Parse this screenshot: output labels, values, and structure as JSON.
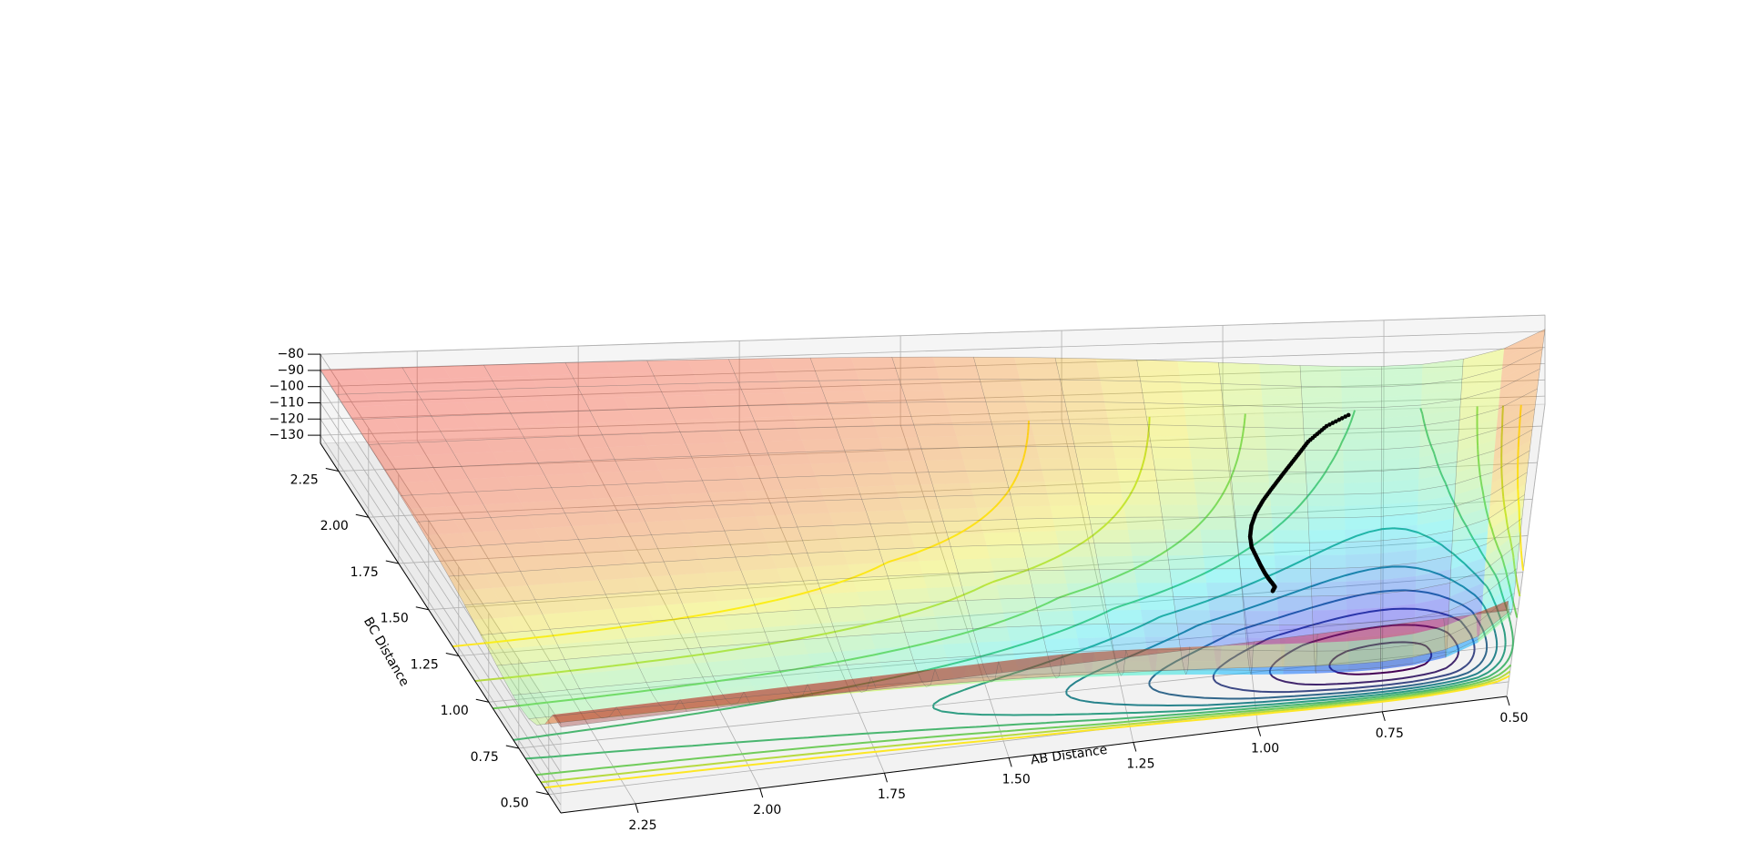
{
  "chart_data": {
    "type": "surface3d",
    "title": "",
    "zlim": [
      -135,
      -80
    ],
    "xlim": [
      0.5,
      2.4
    ],
    "ylim": [
      0.4,
      2.4
    ],
    "x_axis": {
      "label": "AB Distance",
      "ticks": [
        0.5,
        0.75,
        1.0,
        1.25,
        1.5,
        1.75,
        2.0,
        2.25
      ],
      "tick_labels": [
        "0.50",
        "0.75",
        "1.00",
        "1.25",
        "1.50",
        "1.75",
        "2.00",
        "2.25"
      ]
    },
    "y_axis": {
      "label": "BC Distance",
      "ticks": [
        0.5,
        0.75,
        1.0,
        1.25,
        1.5,
        1.75,
        2.0,
        2.25
      ],
      "tick_labels": [
        "0.50",
        "0.75",
        "1.00",
        "1.25",
        "1.50",
        "1.75",
        "2.00",
        "2.25"
      ]
    },
    "z_axis": {
      "label": "",
      "ticks": [
        -80,
        -90,
        -100,
        -110,
        -120,
        -130
      ],
      "tick_labels": [
        "−80",
        "−90",
        "−100",
        "−110",
        "−120",
        "−130"
      ]
    },
    "surface": {
      "colormap": "jet",
      "alpha": 0.3,
      "plateau_energy": -82,
      "asymptote_energy": -104.5,
      "well_energy": -134,
      "saddle": {
        "ab": 0.93,
        "bc": 0.93,
        "energy": -103.5
      }
    },
    "contours": {
      "colormap": "viridis",
      "levels": [
        -132,
        -128,
        -124,
        -120,
        -116,
        -112,
        -108,
        -104,
        -100,
        -96
      ],
      "projected_on": "floor"
    },
    "trajectory": {
      "marker": "dots",
      "color": "#000000",
      "points": [
        [
          0.955,
          0.93,
          -103.6
        ],
        [
          0.95,
          0.96,
          -104
        ],
        [
          0.955,
          1.0,
          -105
        ],
        [
          0.96,
          1.05,
          -107
        ],
        [
          0.965,
          1.12,
          -110
        ],
        [
          0.97,
          1.2,
          -113
        ],
        [
          0.975,
          1.3,
          -117
        ],
        [
          0.98,
          1.4,
          -121
        ],
        [
          0.98,
          1.5,
          -124
        ],
        [
          0.975,
          1.6,
          -127
        ],
        [
          0.965,
          1.7,
          -129
        ],
        [
          0.95,
          1.8,
          -131
        ],
        [
          0.93,
          1.9,
          -132
        ],
        [
          0.91,
          2.0,
          -133
        ],
        [
          0.89,
          2.1,
          -134
        ],
        [
          0.87,
          2.2,
          -134.5
        ],
        [
          0.84,
          2.3,
          -134.8
        ],
        [
          0.8,
          2.38,
          -135
        ]
      ]
    },
    "grid": true,
    "view": {
      "elevation": 55,
      "azimuth": 75
    }
  }
}
